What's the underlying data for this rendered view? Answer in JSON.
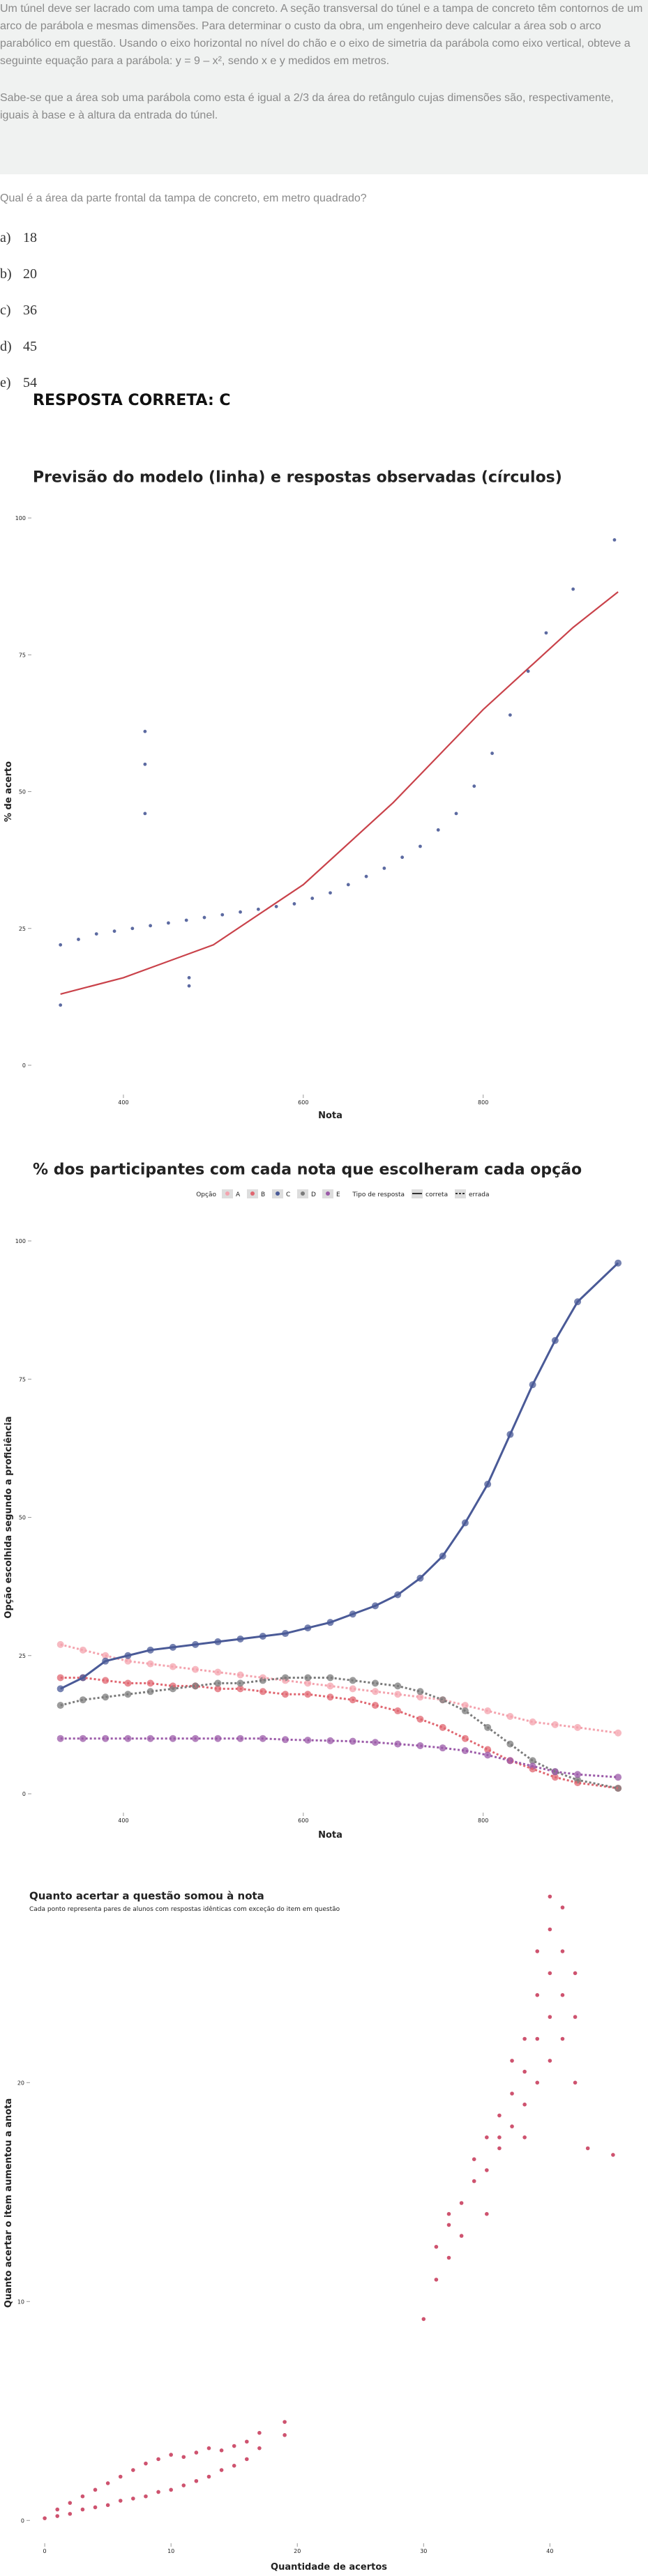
{
  "question": {
    "paragraphs": [
      "Um túnel deve ser lacrado com uma tampa de concreto. A seção transversal do túnel e a tampa de concreto têm contornos de um arco de parábola e mesmas dimensões. Para determinar o custo da obra, um engenheiro deve calcular a área sob o arco parabólico em questão. Usando o eixo horizontal no nível do chão e o eixo de simetria da parábola como eixo vertical, obteve a seguinte equação para a parábola: y = 9 – x², sendo x e y medidos em metros.",
      "Sabe-se que a área sob uma parábola como esta é igual a 2/3 da área do retângulo cujas dimensões são, respectivamente, iguais à base e à altura da entrada do túnel."
    ],
    "prompt": "Qual é a área da parte frontal da tampa de concreto, em metro quadrado?",
    "options": [
      {
        "letter": "a)",
        "text": "18"
      },
      {
        "letter": "b)",
        "text": "20"
      },
      {
        "letter": "c)",
        "text": "36"
      },
      {
        "letter": "d)",
        "text": "45"
      },
      {
        "letter": "e)",
        "text": "54"
      }
    ],
    "answer": "RESPOSTA CORRETA: C"
  },
  "chart_data": [
    {
      "type": "scatter",
      "title": "Previsão do modelo (linha) e respostas observadas (círculos)",
      "x_label": "Nota",
      "y_label": "% de acerto",
      "xlim": [
        300,
        960
      ],
      "xticks": [
        400,
        600,
        800
      ],
      "ylim": [
        0,
        100
      ],
      "yticks": [
        0,
        25,
        50,
        75,
        100
      ],
      "color": "#4a5a97",
      "x": [
        330,
        350,
        370,
        390,
        410,
        430,
        450,
        470,
        490,
        510,
        530,
        550,
        570,
        590,
        610,
        630,
        650,
        670,
        690,
        710,
        730,
        750,
        770,
        790,
        810,
        830,
        850,
        870,
        900,
        946,
        424,
        424,
        424,
        473,
        473,
        330
      ],
      "values": [
        22,
        23,
        24,
        24.5,
        25,
        25.5,
        26,
        26.5,
        27,
        27.5,
        28,
        28.5,
        29,
        29.5,
        30.5,
        31.5,
        33,
        34.5,
        36,
        38,
        40,
        43,
        46,
        51,
        57,
        64,
        72,
        79,
        87,
        96,
        61,
        55,
        46,
        16,
        14.5,
        11
      ],
      "fit": {
        "color": "#c9424a",
        "x": [
          330,
          400,
          500,
          600,
          700,
          800,
          900,
          950
        ],
        "values": [
          13,
          16,
          22,
          33,
          48,
          65,
          80,
          86.5
        ]
      }
    },
    {
      "type": "scatter",
      "title": "% dos participantes com cada nota que escolheram cada opção",
      "x_label": "Nota",
      "y_label": "Opção escolhida segundo a proficiência",
      "legend_title": "Opção",
      "response_legend_title": "Tipo de resposta",
      "response_types": [
        "correta",
        "errada"
      ],
      "correct": "C",
      "xlim": [
        300,
        960
      ],
      "xticks": [
        400,
        600,
        800
      ],
      "ylim": [
        0,
        100
      ],
      "yticks": [
        0,
        25,
        50,
        75,
        100
      ],
      "x": [
        330,
        355,
        380,
        405,
        430,
        455,
        480,
        505,
        530,
        555,
        580,
        605,
        630,
        655,
        680,
        705,
        730,
        755,
        780,
        805,
        830,
        855,
        880,
        905,
        950
      ],
      "series": [
        {
          "name": "A",
          "color": "#f4a3ae",
          "values": [
            27,
            26,
            25,
            24,
            23.5,
            23,
            22.5,
            22,
            21.5,
            21,
            20.5,
            20,
            19.5,
            19,
            18.5,
            18,
            17.5,
            17,
            16,
            15,
            14,
            13,
            12.5,
            12,
            11
          ]
        },
        {
          "name": "B",
          "color": "#e06670",
          "values": [
            21,
            21,
            20.5,
            20,
            20,
            19.5,
            19.5,
            19,
            19,
            18.5,
            18,
            18,
            17.5,
            17,
            16,
            15,
            13.5,
            12,
            10,
            8,
            6,
            4.5,
            3,
            2,
            1
          ]
        },
        {
          "name": "C",
          "color": "#4a5a97",
          "values": [
            19,
            21,
            24,
            25,
            26,
            26.5,
            27,
            27.5,
            28,
            28.5,
            29,
            30,
            31,
            32.5,
            34,
            36,
            39,
            43,
            49,
            56,
            65,
            74,
            82,
            89,
            96
          ]
        },
        {
          "name": "D",
          "color": "#7b7b7b",
          "values": [
            16,
            17,
            17.5,
            18,
            18.5,
            19,
            19.5,
            20,
            20,
            20.5,
            21,
            21,
            21,
            20.5,
            20,
            19.5,
            18.5,
            17,
            15,
            12,
            9,
            6,
            4,
            2.5,
            1
          ]
        },
        {
          "name": "E",
          "color": "#9b5aa8",
          "values": [
            10,
            10,
            10,
            10,
            10,
            10,
            10,
            10,
            10,
            10,
            9.8,
            9.7,
            9.6,
            9.5,
            9.3,
            9,
            8.7,
            8.3,
            7.8,
            7,
            6,
            5,
            4,
            3.5,
            3
          ]
        }
      ]
    },
    {
      "type": "scatter",
      "title": "Quanto acertar a questão somou à nota",
      "subtitle": "Cada ponto representa pares de alunos com respostas idênticas com exceção do item em questão",
      "x_label": "Quantidade de acertos",
      "y_label": "Quanto acertar o item aumentou a anota",
      "xlim": [
        -1,
        46
      ],
      "xticks": [
        0,
        10,
        20,
        30,
        40
      ],
      "ylim": [
        -0.5,
        29.5
      ],
      "yticks": [
        0,
        10,
        20
      ],
      "color": "#c9405f",
      "x": [
        0,
        1,
        1,
        2,
        2,
        3,
        3,
        4,
        4,
        5,
        5,
        6,
        6,
        7,
        7,
        8,
        8,
        9,
        9,
        10,
        10,
        11,
        11,
        12,
        12,
        13,
        13,
        14,
        14,
        15,
        15,
        16,
        16,
        17,
        17,
        19,
        19,
        30,
        31,
        31,
        32,
        32,
        32,
        33,
        33,
        34,
        34,
        35,
        35,
        35,
        36,
        36,
        36,
        37,
        37,
        37,
        38,
        38,
        38,
        38,
        39,
        39,
        39,
        39,
        40,
        40,
        40,
        40,
        40,
        41,
        41,
        41,
        41,
        42,
        42,
        42,
        43,
        45
      ],
      "values": [
        0.1,
        0.2,
        0.5,
        0.3,
        0.8,
        0.5,
        1.1,
        0.6,
        1.4,
        0.7,
        1.7,
        0.9,
        2.0,
        1.0,
        2.3,
        1.1,
        2.6,
        1.3,
        2.8,
        1.4,
        3.0,
        1.6,
        2.9,
        1.8,
        3.1,
        2.0,
        3.3,
        2.3,
        3.2,
        2.5,
        3.4,
        2.8,
        3.6,
        3.3,
        4.0,
        3.9,
        4.5,
        9.2,
        11,
        12.5,
        12,
        13.5,
        14,
        13,
        14.5,
        15.5,
        16.5,
        14,
        16,
        17.5,
        17,
        17.5,
        18.5,
        18,
        19.5,
        21,
        17.5,
        19,
        20.5,
        22,
        20,
        22,
        24,
        26,
        21,
        23,
        25,
        27,
        28.5,
        22,
        24,
        26,
        28,
        20,
        23,
        25,
        17,
        16.7
      ]
    }
  ]
}
